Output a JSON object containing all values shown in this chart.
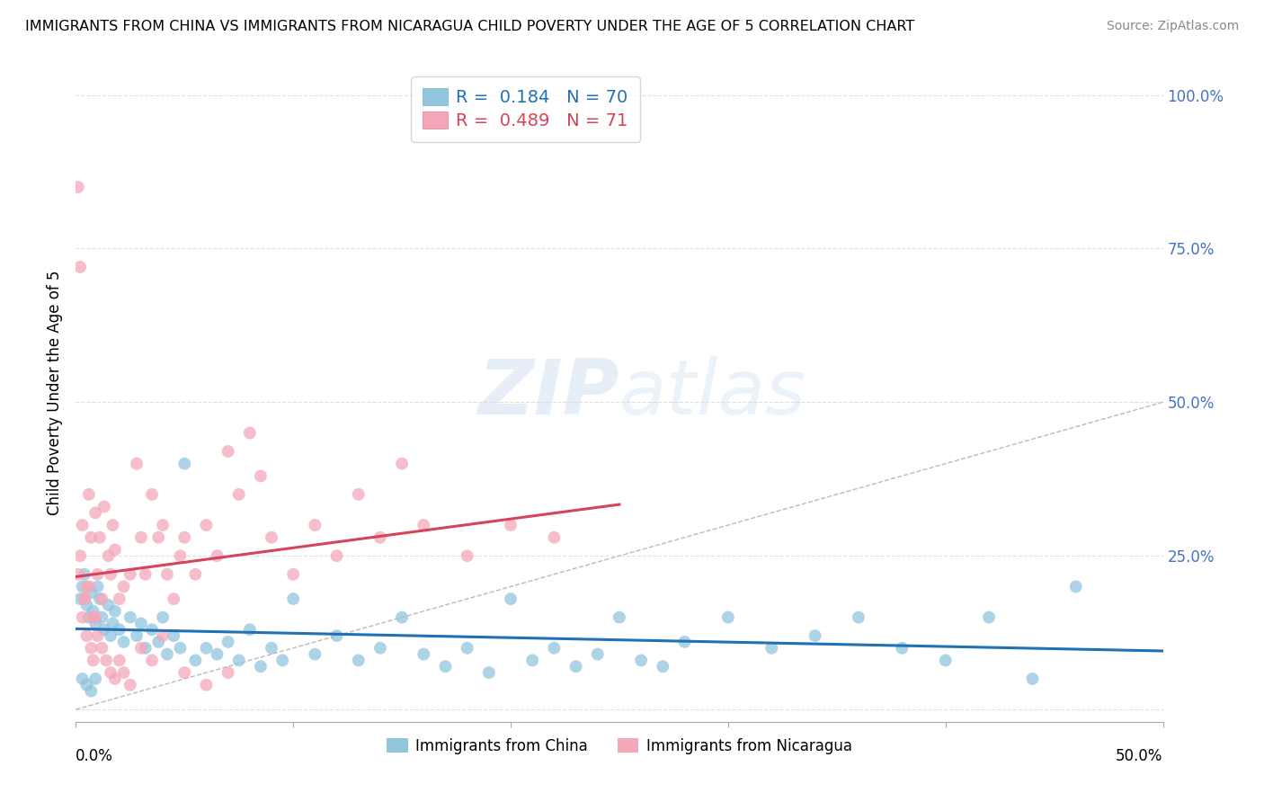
{
  "title": "IMMIGRANTS FROM CHINA VS IMMIGRANTS FROM NICARAGUA CHILD POVERTY UNDER THE AGE OF 5 CORRELATION CHART",
  "source": "Source: ZipAtlas.com",
  "ylabel": "Child Poverty Under the Age of 5",
  "xlim": [
    0.0,
    0.5
  ],
  "ylim": [
    -0.02,
    1.05
  ],
  "R_china": 0.184,
  "N_china": 70,
  "R_nicaragua": 0.489,
  "N_nicaragua": 71,
  "color_china": "#92c5de",
  "color_nicaragua": "#f4a7b9",
  "line_color_china": "#2171b5",
  "line_color_nicaragua": "#d6435a",
  "diagonal_color": "#bbbbbb",
  "watermark_zip": "ZIP",
  "watermark_atlas": "atlas",
  "background_color": "#ffffff",
  "grid_color": "#dddddd",
  "ytick_color": "#4472c4",
  "china_x": [
    0.002,
    0.003,
    0.004,
    0.005,
    0.006,
    0.007,
    0.008,
    0.009,
    0.01,
    0.011,
    0.012,
    0.013,
    0.015,
    0.016,
    0.017,
    0.018,
    0.02,
    0.022,
    0.025,
    0.028,
    0.03,
    0.032,
    0.035,
    0.038,
    0.04,
    0.042,
    0.045,
    0.048,
    0.05,
    0.055,
    0.06,
    0.065,
    0.07,
    0.075,
    0.08,
    0.085,
    0.09,
    0.095,
    0.1,
    0.11,
    0.12,
    0.13,
    0.14,
    0.15,
    0.16,
    0.17,
    0.18,
    0.19,
    0.2,
    0.21,
    0.22,
    0.23,
    0.24,
    0.25,
    0.26,
    0.27,
    0.28,
    0.3,
    0.32,
    0.34,
    0.36,
    0.38,
    0.4,
    0.42,
    0.44,
    0.46,
    0.003,
    0.005,
    0.007,
    0.009
  ],
  "china_y": [
    0.18,
    0.2,
    0.22,
    0.17,
    0.15,
    0.19,
    0.16,
    0.14,
    0.2,
    0.18,
    0.15,
    0.13,
    0.17,
    0.12,
    0.14,
    0.16,
    0.13,
    0.11,
    0.15,
    0.12,
    0.14,
    0.1,
    0.13,
    0.11,
    0.15,
    0.09,
    0.12,
    0.1,
    0.4,
    0.08,
    0.1,
    0.09,
    0.11,
    0.08,
    0.13,
    0.07,
    0.1,
    0.08,
    0.18,
    0.09,
    0.12,
    0.08,
    0.1,
    0.15,
    0.09,
    0.07,
    0.1,
    0.06,
    0.18,
    0.08,
    0.1,
    0.07,
    0.09,
    0.15,
    0.08,
    0.07,
    0.11,
    0.15,
    0.1,
    0.12,
    0.15,
    0.1,
    0.08,
    0.15,
    0.05,
    0.2,
    0.05,
    0.04,
    0.03,
    0.05
  ],
  "nicaragua_x": [
    0.001,
    0.002,
    0.003,
    0.004,
    0.005,
    0.006,
    0.007,
    0.008,
    0.009,
    0.01,
    0.011,
    0.012,
    0.013,
    0.015,
    0.016,
    0.017,
    0.018,
    0.02,
    0.022,
    0.025,
    0.028,
    0.03,
    0.032,
    0.035,
    0.038,
    0.04,
    0.042,
    0.045,
    0.048,
    0.05,
    0.055,
    0.06,
    0.065,
    0.07,
    0.075,
    0.08,
    0.085,
    0.09,
    0.1,
    0.11,
    0.12,
    0.13,
    0.14,
    0.15,
    0.16,
    0.18,
    0.2,
    0.22,
    0.003,
    0.004,
    0.005,
    0.006,
    0.007,
    0.008,
    0.009,
    0.01,
    0.012,
    0.014,
    0.016,
    0.018,
    0.02,
    0.022,
    0.025,
    0.03,
    0.035,
    0.04,
    0.05,
    0.06,
    0.07,
    0.001,
    0.002
  ],
  "nicaragua_y": [
    0.22,
    0.25,
    0.3,
    0.18,
    0.2,
    0.35,
    0.28,
    0.15,
    0.32,
    0.22,
    0.28,
    0.18,
    0.33,
    0.25,
    0.22,
    0.3,
    0.26,
    0.18,
    0.2,
    0.22,
    0.4,
    0.28,
    0.22,
    0.35,
    0.28,
    0.3,
    0.22,
    0.18,
    0.25,
    0.28,
    0.22,
    0.3,
    0.25,
    0.42,
    0.35,
    0.45,
    0.38,
    0.28,
    0.22,
    0.3,
    0.25,
    0.35,
    0.28,
    0.4,
    0.3,
    0.25,
    0.3,
    0.28,
    0.15,
    0.18,
    0.12,
    0.2,
    0.1,
    0.08,
    0.15,
    0.12,
    0.1,
    0.08,
    0.06,
    0.05,
    0.08,
    0.06,
    0.04,
    0.1,
    0.08,
    0.12,
    0.06,
    0.04,
    0.06,
    0.85,
    0.72
  ]
}
